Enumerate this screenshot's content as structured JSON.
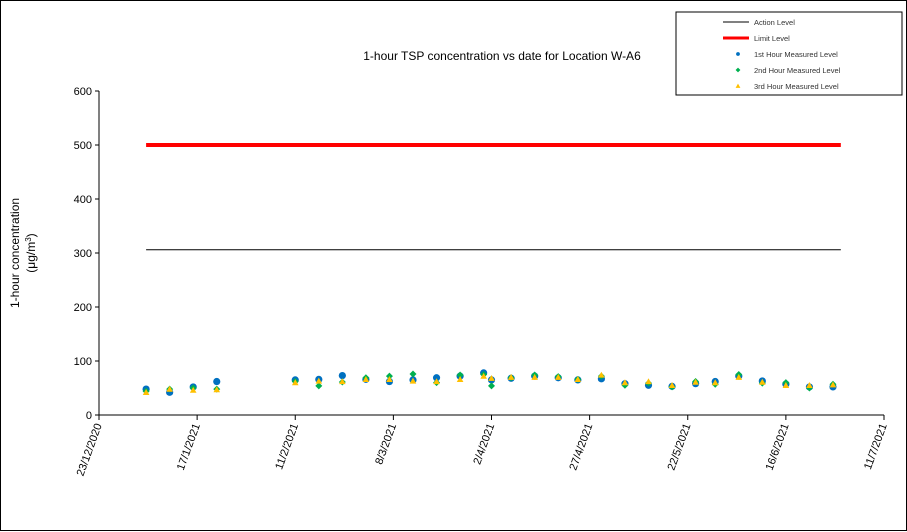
{
  "chart_data": {
    "type": "scatter",
    "title": "1-hour TSP concentration vs date for Location  W-A6",
    "ylabel_line1": "1-hour concentration",
    "ylabel_line2_pre": "(μg/m",
    "ylabel_line2_sup": "3",
    "ylabel_line2_post": ")",
    "ylim": [
      0,
      600
    ],
    "yticks": [
      0,
      100,
      200,
      300,
      400,
      500,
      600
    ],
    "xlim": [
      "2020-12-23",
      "2021-07-11"
    ],
    "xticks": [
      {
        "date": "2020-12-23",
        "label": "23/12/2020"
      },
      {
        "date": "2021-01-17",
        "label": "17/1/2021"
      },
      {
        "date": "2021-02-11",
        "label": "11/2/2021"
      },
      {
        "date": "2021-03-08",
        "label": "8/3/2021"
      },
      {
        "date": "2021-04-02",
        "label": "2/4/2021"
      },
      {
        "date": "2021-04-27",
        "label": "27/4/2021"
      },
      {
        "date": "2021-05-22",
        "label": "22/5/2021"
      },
      {
        "date": "2021-06-16",
        "label": "16/6/2021"
      },
      {
        "date": "2021-07-11",
        "label": "11/7/2021"
      }
    ],
    "grid": false,
    "legend_position": "top-right",
    "action_level": {
      "name": "Action Level",
      "value": 306,
      "x_range": [
        "2021-01-04",
        "2021-06-30"
      ],
      "color": "#000000"
    },
    "limit_level": {
      "name": "Limit Level",
      "value": 500,
      "x_range": [
        "2021-01-04",
        "2021-06-30"
      ],
      "color": "#ff0000"
    },
    "dates": [
      "2021-01-04",
      "2021-01-10",
      "2021-01-16",
      "2021-01-22",
      "2021-02-11",
      "2021-02-17",
      "2021-02-23",
      "2021-03-01",
      "2021-03-07",
      "2021-03-13",
      "2021-03-19",
      "2021-03-25",
      "2021-03-31",
      "2021-04-02",
      "2021-04-07",
      "2021-04-13",
      "2021-04-19",
      "2021-04-24",
      "2021-04-30",
      "2021-05-06",
      "2021-05-12",
      "2021-05-18",
      "2021-05-24",
      "2021-05-29",
      "2021-06-04",
      "2021-06-10",
      "2021-06-16",
      "2021-06-22",
      "2021-06-28"
    ],
    "series": [
      {
        "name": "1st Hour Measured Level",
        "color": "#0070c0",
        "marker": "circle",
        "values": [
          48,
          42,
          52,
          62,
          65,
          66,
          73,
          66,
          62,
          65,
          69,
          72,
          78,
          65,
          68,
          72,
          69,
          65,
          67,
          58,
          55,
          53,
          58,
          62,
          72,
          63,
          57,
          52,
          52
        ]
      },
      {
        "name": "2nd Hour Measured Level",
        "color": "#00b050",
        "marker": "diamond",
        "values": [
          44,
          48,
          50,
          48,
          62,
          54,
          61,
          69,
          72,
          76,
          60,
          74,
          75,
          54,
          69,
          74,
          71,
          66,
          72,
          55,
          59,
          52,
          62,
          57,
          75,
          59,
          60,
          50,
          57
        ]
      },
      {
        "name": "3rd Hour Measured Level",
        "color": "#ffc000",
        "marker": "triangle",
        "values": [
          42,
          48,
          46,
          47,
          60,
          63,
          62,
          66,
          66,
          63,
          62,
          66,
          72,
          68,
          70,
          70,
          70,
          66,
          74,
          60,
          62,
          55,
          61,
          60,
          70,
          61,
          55,
          55,
          56
        ]
      }
    ]
  }
}
